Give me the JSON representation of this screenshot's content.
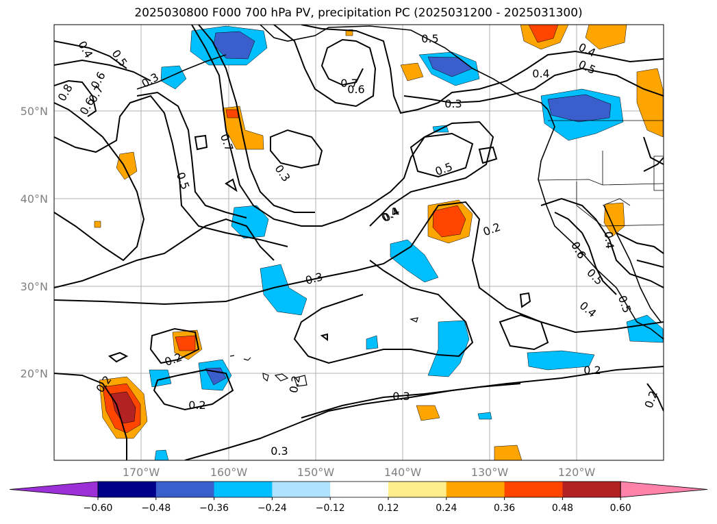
{
  "title": "2025030800 F000 700 hPa PV, precipitation PC (2025031200 - 2025031300)",
  "lat_ticks": [
    "50°N",
    "40°N",
    "30°N",
    "20°N"
  ],
  "lon_ticks": [
    "170°W",
    "160°W",
    "150°W",
    "140°W",
    "130°W",
    "120°W"
  ],
  "colorbar": {
    "colors": [
      "#9b30d6",
      "#00008b",
      "#3a5fcd",
      "#00bfff",
      "#b0e2ff",
      "#ffffff",
      "#ffec8b",
      "#ffa500",
      "#ff4500",
      "#b22222",
      "#ff82ab"
    ],
    "tick_labels": [
      "−0.60",
      "−0.48",
      "−0.36",
      "−0.24",
      "−0.12",
      "0.12",
      "0.24",
      "0.36",
      "0.48",
      "0.60"
    ]
  },
  "contour_labels": [
    "0.4",
    "0.5",
    "0.8",
    "0.7",
    "0.6",
    "0.6",
    "0.7",
    "0.5",
    "0.3",
    "0.6",
    "0.7",
    "0.5",
    "0.3",
    "0.3",
    "0.4",
    "0.5",
    "0.6",
    "0.4",
    "0.5",
    "0.4",
    "0.2",
    "0.6",
    "0.4",
    "0.5",
    "0.4",
    "0.5",
    "0.4",
    "0.3",
    "0.2",
    "0.2",
    "0.3",
    "0.2",
    "0.2",
    "0.3",
    "0.2",
    "0.2"
  ]
}
